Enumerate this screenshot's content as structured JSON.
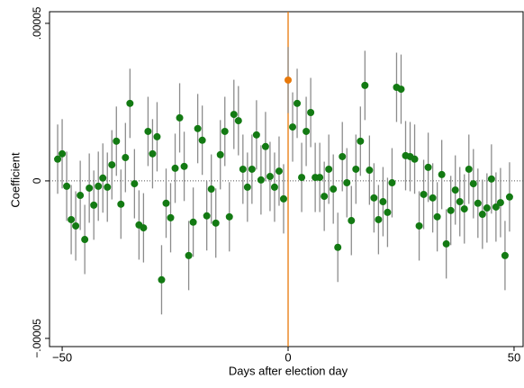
{
  "chart_data": {
    "type": "scatter",
    "x_label": "Days after election day",
    "y_label": "Coefficient",
    "xlim": [
      -52.8,
      52.2
    ],
    "ylim": [
      -5.26e-05,
      5.37e-05
    ],
    "xticks": [
      {
        "value": -50,
        "label": "−50"
      },
      0,
      50
    ],
    "yticks": [
      {
        "value": -5e-05,
        "label": "−.00005"
      },
      0,
      {
        "value": 5e-05,
        "label": ".00005"
      }
    ],
    "zero_line": true,
    "vline": {
      "x": 0,
      "color": "#e8790a"
    },
    "error_color": "#8c8c8c",
    "series": [
      {
        "color": "#137a13",
        "x": [
          -51,
          -50,
          -49,
          -48,
          -47,
          -46,
          -45,
          -44,
          -43,
          -42,
          -41,
          -40,
          -39,
          -38,
          -37,
          -36,
          -35,
          -34,
          -33,
          -32,
          -31,
          -30,
          -29,
          -28,
          -27,
          -26,
          -25,
          -24,
          -23,
          -22,
          -21,
          -20,
          -19,
          -18,
          -17,
          -16,
          -15,
          -14,
          -13,
          -12,
          -11,
          -10,
          -9,
          -8,
          -7,
          -6,
          -5,
          -4,
          -3,
          -2,
          -1,
          1,
          2,
          3,
          4,
          5,
          6,
          7,
          8,
          9,
          10,
          11,
          12,
          13,
          14,
          15,
          16,
          17,
          18,
          19,
          20,
          21,
          22,
          23,
          24,
          25,
          26,
          27,
          28,
          29,
          30,
          31,
          32,
          33,
          34,
          35,
          36,
          37,
          38,
          39,
          40,
          41,
          42,
          43,
          44,
          45,
          46,
          47,
          48,
          49
        ],
        "values": [
          6.9e-06,
          8.6e-06,
          -1.7e-06,
          -1.23e-05,
          -1.43e-05,
          -4.6e-06,
          -1.86e-05,
          -2.3e-06,
          -7.7e-06,
          -1.7e-06,
          9e-07,
          -2e-06,
          5.1e-06,
          1.26e-05,
          -7.4e-06,
          7.4e-06,
          2.46e-05,
          -9e-07,
          -1.4e-05,
          -1.49e-05,
          1.57e-05,
          8.6e-06,
          1.4e-05,
          -3.14e-05,
          -7.1e-06,
          -1.17e-05,
          4e-06,
          2e-05,
          4.6e-06,
          -2.37e-05,
          -1.31e-05,
          1.66e-05,
          1.29e-05,
          -1.11e-05,
          -2.6e-06,
          -1.34e-05,
          8.3e-06,
          1.57e-05,
          -1.14e-05,
          2.11e-05,
          1.91e-05,
          3.7e-06,
          -2e-06,
          3.7e-06,
          1.46e-05,
          3e-07,
          1.09e-05,
          1.4e-06,
          -2e-06,
          3.1e-06,
          -5.7e-06,
          1.71e-05,
          2.46e-05,
          1.1e-06,
          1.57e-05,
          2.17e-05,
          1.1e-06,
          1.1e-06,
          -4.9e-06,
          3.7e-06,
          -2.6e-06,
          -2.11e-05,
          7.7e-06,
          -6e-07,
          -1.26e-05,
          3.7e-06,
          1.26e-05,
          3.03e-05,
          3.4e-06,
          -5.4e-06,
          -1.23e-05,
          -6.6e-06,
          -1e-05,
          -6e-07,
          2.97e-05,
          2.91e-05,
          8e-06,
          7.7e-06,
          6.9e-06,
          -1.43e-05,
          -4.3e-06,
          4.3e-06,
          -5.4e-06,
          -1.14e-05,
          2e-06,
          -2e-05,
          -9.4e-06,
          -2.9e-06,
          -6.6e-06,
          -8.9e-06,
          3.7e-06,
          -9e-07,
          -7.1e-06,
          -1.06e-05,
          -8.6e-06,
          6e-07,
          -8.3e-06,
          -6.9e-06,
          -2.37e-05,
          -5.1e-06
        ],
        "errors": [
          1.1e-05,
          1.1e-05,
          1.1e-05,
          1.1e-05,
          1.1e-05,
          1.1e-05,
          1.1e-05,
          1.1e-05,
          1.1e-05,
          1.1e-05,
          1.1e-05,
          1.1e-05,
          1.1e-05,
          1.1e-05,
          1.1e-05,
          1.1e-05,
          1.1e-05,
          1.1e-05,
          1.1e-05,
          1.1e-05,
          1.1e-05,
          1.1e-05,
          1.1e-05,
          1.1e-05,
          1.1e-05,
          1.1e-05,
          1.1e-05,
          1.1e-05,
          1.1e-05,
          1.1e-05,
          1.1e-05,
          1.1e-05,
          1.1e-05,
          1.1e-05,
          1.1e-05,
          1.1e-05,
          1.1e-05,
          1.1e-05,
          1.1e-05,
          1.1e-05,
          1.1e-05,
          1.1e-05,
          1.1e-05,
          1.1e-05,
          1.1e-05,
          1.1e-05,
          1.1e-05,
          1.1e-05,
          1.1e-05,
          1.1e-05,
          1.1e-05,
          1.1e-05,
          1.1e-05,
          1.1e-05,
          1.1e-05,
          1.1e-05,
          1.1e-05,
          1.1e-05,
          1.1e-05,
          1.1e-05,
          1.1e-05,
          1.1e-05,
          1.1e-05,
          1.1e-05,
          1.1e-05,
          1.1e-05,
          1.1e-05,
          1.1e-05,
          1.1e-05,
          1.1e-05,
          1.1e-05,
          1.1e-05,
          1.1e-05,
          1.1e-05,
          1.1e-05,
          1.1e-05,
          1.1e-05,
          1.1e-05,
          1.1e-05,
          1.1e-05,
          1.1e-05,
          1.1e-05,
          1.1e-05,
          1.1e-05,
          1.1e-05,
          1.1e-05,
          1.1e-05,
          1.1e-05,
          1.1e-05,
          1.1e-05,
          1.1e-05,
          1.1e-05,
          1.1e-05,
          1.1e-05,
          1.1e-05,
          1.1e-05,
          1.1e-05,
          1.1e-05,
          1.1e-05,
          1.1e-05
        ]
      },
      {
        "color": "#e8790a",
        "x": [
          0
        ],
        "values": [
          3.2e-05
        ],
        "errors": [
          1.05e-05
        ]
      }
    ]
  }
}
